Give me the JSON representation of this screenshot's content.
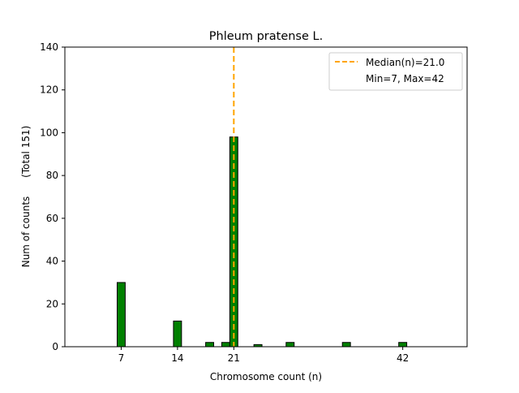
{
  "chart_data": {
    "type": "bar",
    "title": "Phleum pratense L.",
    "xlabel": "Chromosome count (n)",
    "ylabel": "Num of counts      (Total 151)",
    "xlim": [
      0,
      50
    ],
    "ylim": [
      0,
      140
    ],
    "xticks": [
      7,
      14,
      21,
      42
    ],
    "yticks": [
      0,
      20,
      40,
      60,
      80,
      100,
      120,
      140
    ],
    "bar_width": 1,
    "bars": [
      {
        "x": 7,
        "value": 30
      },
      {
        "x": 14,
        "value": 12
      },
      {
        "x": 18,
        "value": 2
      },
      {
        "x": 20,
        "value": 2
      },
      {
        "x": 21,
        "value": 98
      },
      {
        "x": 24,
        "value": 1
      },
      {
        "x": 28,
        "value": 2
      },
      {
        "x": 35,
        "value": 2
      },
      {
        "x": 42,
        "value": 2
      }
    ],
    "median": 21.0,
    "bar_color": "#008000",
    "median_color": "#FFA500",
    "legend": {
      "position": "top-right",
      "entries": [
        "Median(n)=21.0",
        "Min=7, Max=42"
      ]
    }
  }
}
